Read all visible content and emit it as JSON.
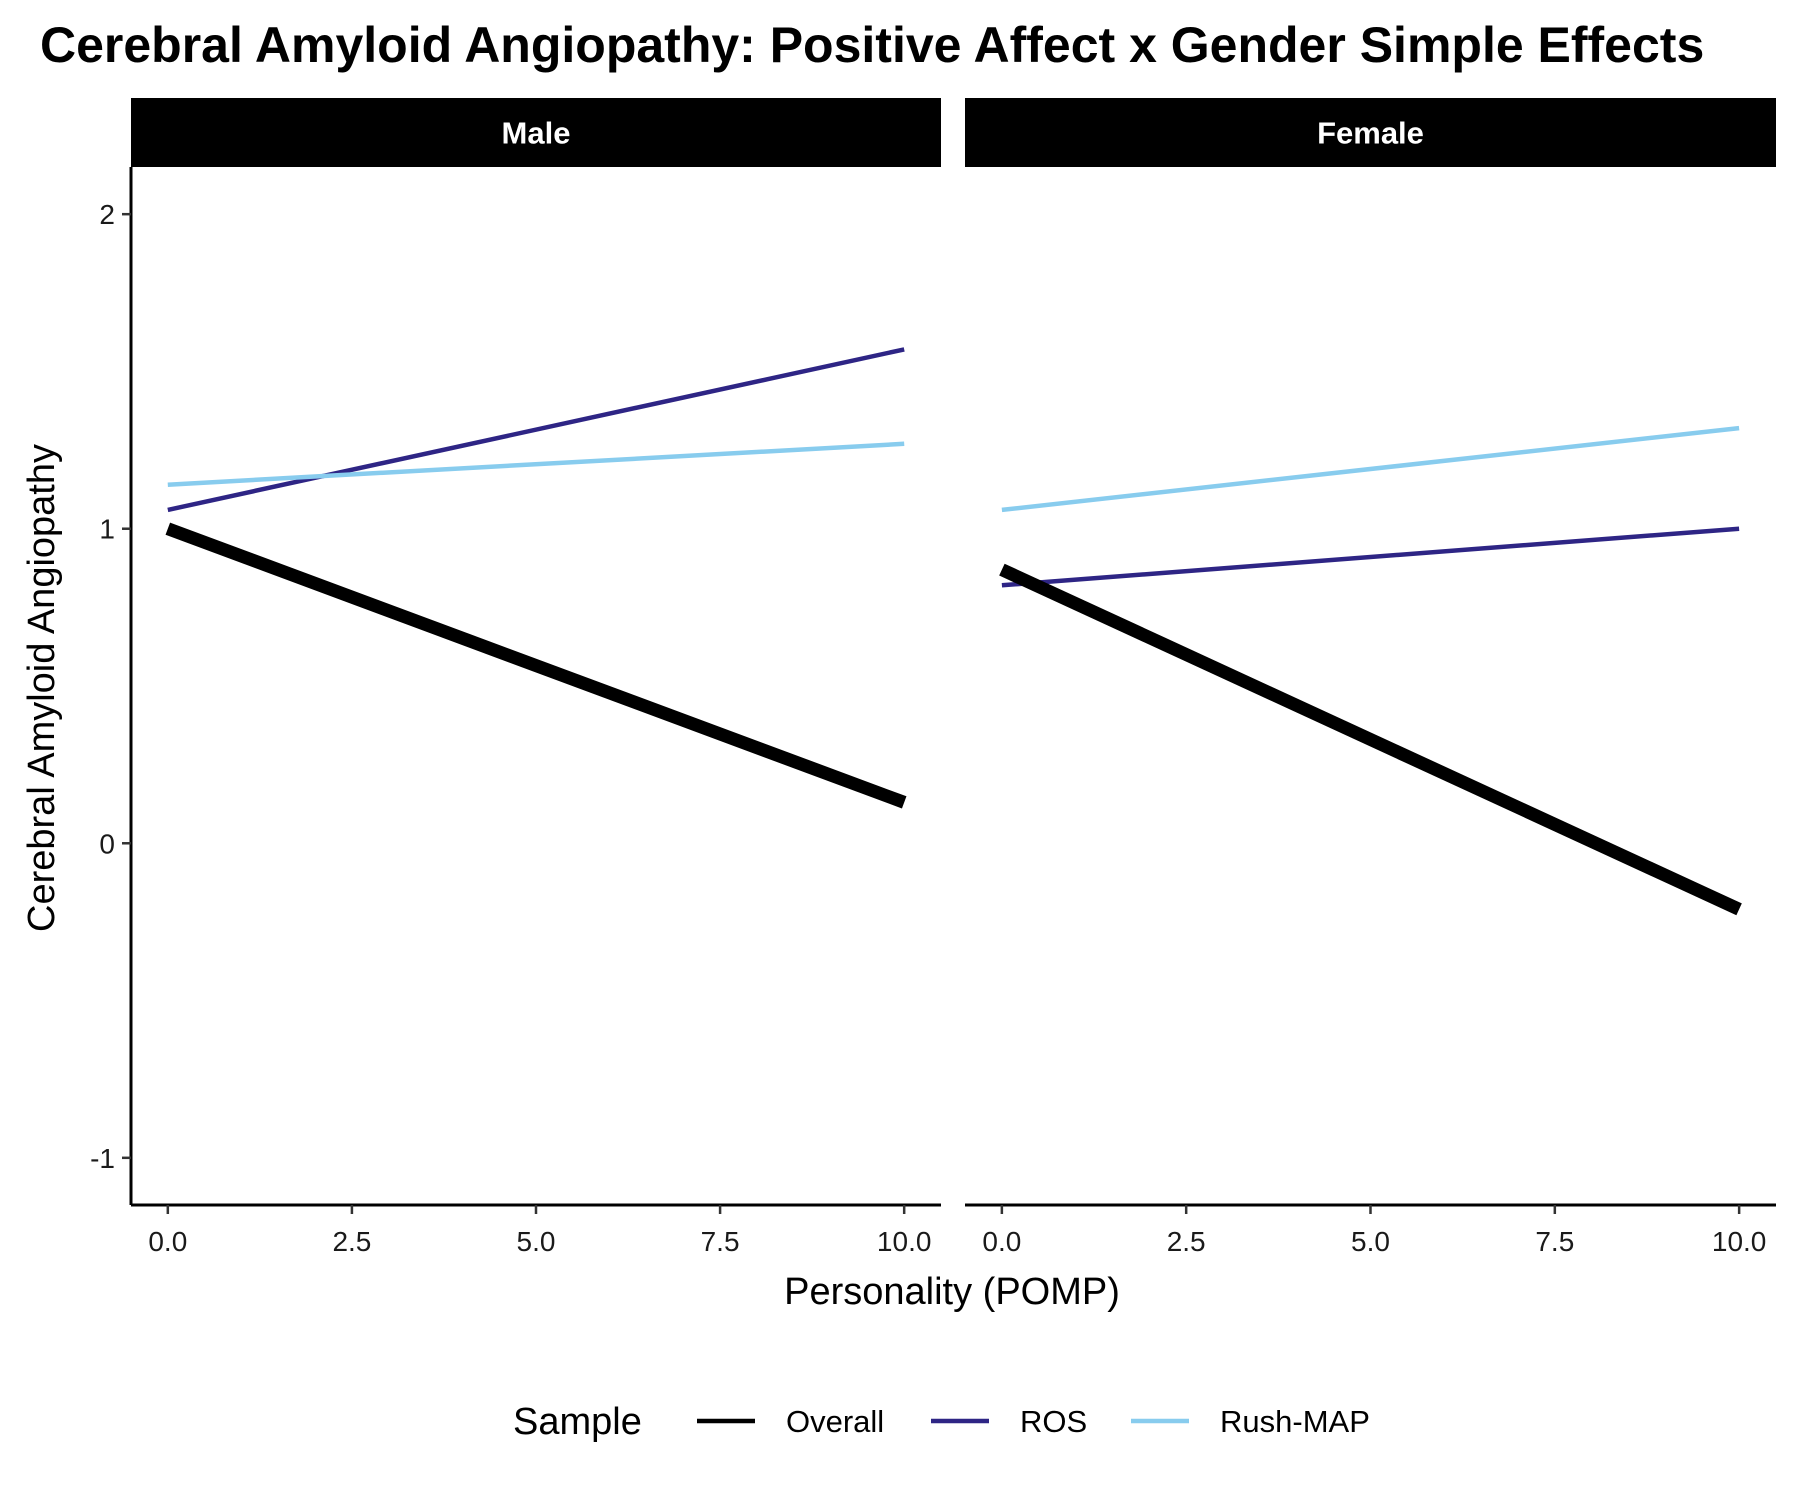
{
  "chart_data": {
    "type": "line",
    "title": "Cerebral Amyloid Angiopathy: Positive Affect x Gender Simple Effects",
    "xlabel": "Personality (POMP)",
    "ylabel": "Cerebral Amyloid Angiopathy",
    "xlim": [
      -0.5,
      10.5
    ],
    "ylim": [
      -1.15,
      2.15
    ],
    "x_ticks": [
      0.0,
      2.5,
      5.0,
      7.5,
      10.0
    ],
    "x_tick_labels": [
      "0.0",
      "2.5",
      "5.0",
      "7.5",
      "10.0"
    ],
    "y_ticks": [
      -1,
      0,
      1,
      2
    ],
    "y_tick_labels": [
      "-1",
      "0",
      "1",
      "2"
    ],
    "grid": false,
    "legend": {
      "title": "Sample",
      "position": "bottom",
      "entries": [
        "Overall",
        "ROS",
        "Rush-MAP"
      ]
    },
    "panels": [
      {
        "label": "Male",
        "series": [
          {
            "name": "Overall",
            "color": "#000000",
            "line_weight": "thick",
            "x": [
              0,
              10
            ],
            "y": [
              1.0,
              0.13
            ]
          },
          {
            "name": "ROS",
            "color": "#2e2585",
            "line_weight": "normal",
            "x": [
              0,
              10
            ],
            "y": [
              1.06,
              1.57
            ]
          },
          {
            "name": "Rush-MAP",
            "color": "#88ccee",
            "line_weight": "normal",
            "x": [
              0,
              10
            ],
            "y": [
              1.14,
              1.27
            ]
          }
        ]
      },
      {
        "label": "Female",
        "series": [
          {
            "name": "Overall",
            "color": "#000000",
            "line_weight": "thick",
            "x": [
              0,
              10
            ],
            "y": [
              0.87,
              -0.21
            ]
          },
          {
            "name": "ROS",
            "color": "#2e2585",
            "line_weight": "normal",
            "x": [
              0,
              10
            ],
            "y": [
              0.82,
              1.0
            ]
          },
          {
            "name": "Rush-MAP",
            "color": "#88ccee",
            "line_weight": "normal",
            "x": [
              0,
              10
            ],
            "y": [
              1.06,
              1.32
            ]
          }
        ]
      }
    ]
  }
}
